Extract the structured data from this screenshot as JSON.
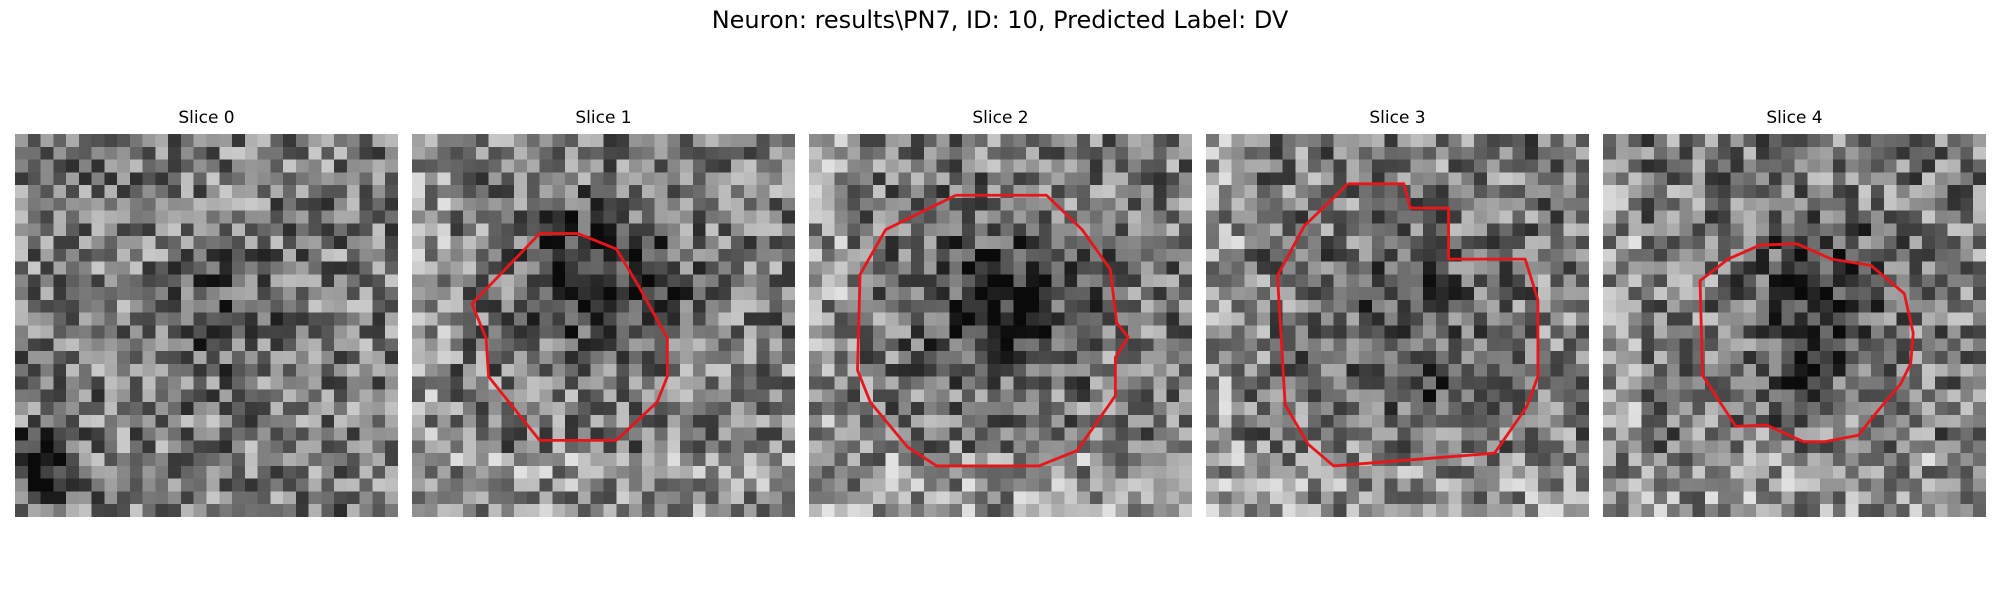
{
  "figure": {
    "title": "Neuron: results\\PN7, ID: 10, Predicted Label: DV",
    "outline_color": "#e8161b",
    "colormap": "gray",
    "slices": [
      {
        "label": "Slice 0",
        "has_outline": false
      },
      {
        "label": "Slice 1",
        "has_outline": true
      },
      {
        "label": "Slice 2",
        "has_outline": true
      },
      {
        "label": "Slice 3",
        "has_outline": true
      },
      {
        "label": "Slice 4",
        "has_outline": true
      }
    ]
  }
}
